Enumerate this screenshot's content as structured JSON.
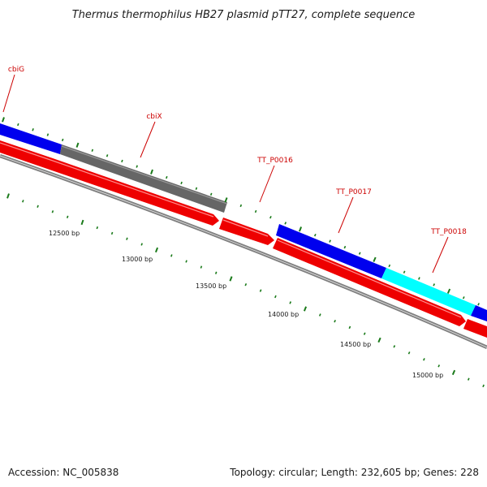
{
  "title": "Thermus thermophilus HB27 plasmid pTT27, complete sequence",
  "footer": {
    "accession": "Accession: NC_005838",
    "summary": "Topology: circular; Length: 232,605 bp; Genes: 228"
  },
  "colors": {
    "forward_gene": "#0000ee",
    "reverse_gene": "#ee0000",
    "rna_gene": "#00ffff",
    "other_gene": "#666666",
    "backbone": "#7f7f7f",
    "tick": "#1a7a1a",
    "label": "#cc0000"
  },
  "scale_labels": [
    {
      "bp": 12500,
      "text": "12500 bp"
    },
    {
      "bp": 13000,
      "text": "13000 bp"
    },
    {
      "bp": 13500,
      "text": "13500 bp"
    },
    {
      "bp": 14000,
      "text": "14000 bp"
    },
    {
      "bp": 14500,
      "text": "14500 bp"
    },
    {
      "bp": 15000,
      "text": "15000 bp"
    }
  ],
  "genes": [
    {
      "name": "cbiG",
      "strand": "forward",
      "type": "other"
    },
    {
      "name": "cbiX",
      "strand": "forward",
      "type": "other"
    },
    {
      "name": "TT_P0016",
      "strand": "reverse",
      "type": "other"
    },
    {
      "name": "TT_P0017",
      "strand": "forward",
      "type": "other"
    },
    {
      "name": "TT_P0018",
      "strand": "forward",
      "type": "rna"
    }
  ]
}
